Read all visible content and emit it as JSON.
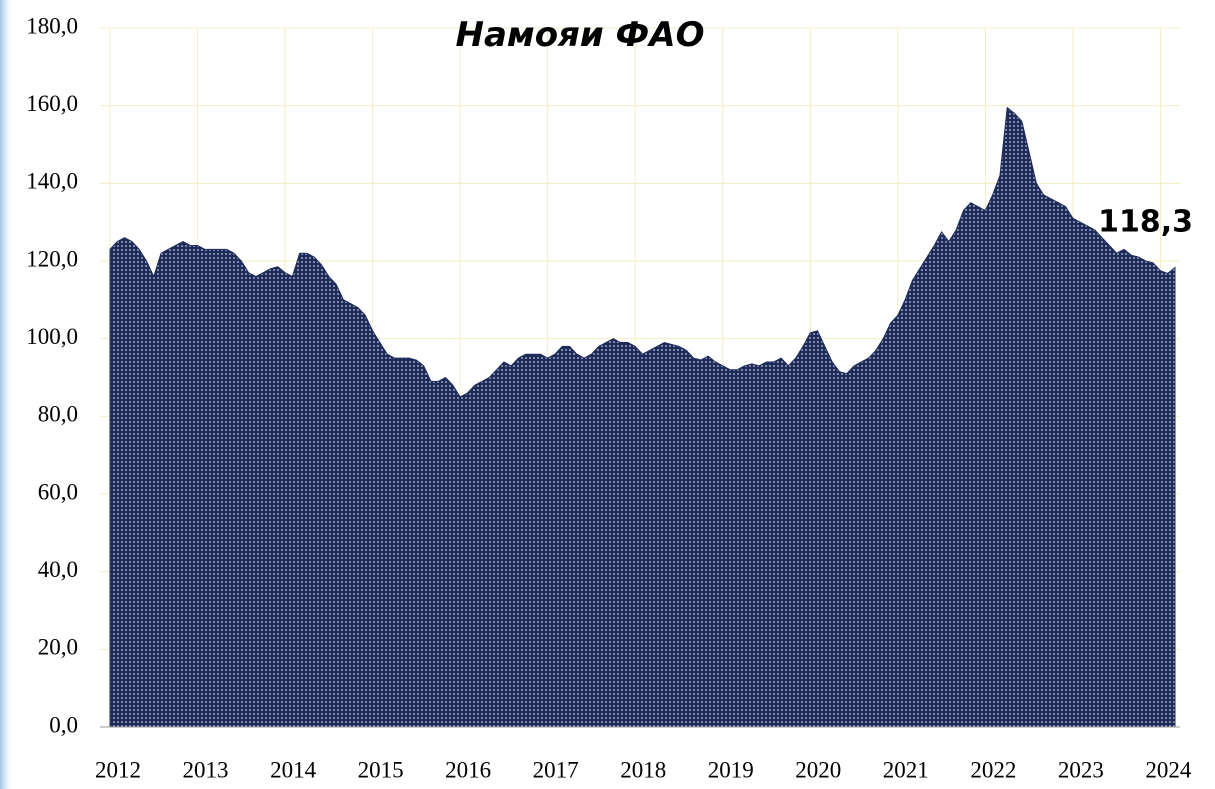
{
  "chart_data": {
    "type": "area",
    "title": "Намояи ФАО",
    "categories": [
      "2012",
      null,
      null,
      null,
      null,
      null,
      null,
      null,
      null,
      null,
      null,
      null,
      "2013",
      null,
      null,
      null,
      null,
      null,
      null,
      null,
      null,
      null,
      null,
      null,
      "2014",
      null,
      null,
      null,
      null,
      null,
      null,
      null,
      null,
      null,
      null,
      null,
      "2015",
      null,
      null,
      null,
      null,
      null,
      null,
      null,
      null,
      null,
      null,
      null,
      "2016",
      null,
      null,
      null,
      null,
      null,
      null,
      null,
      null,
      null,
      null,
      null,
      "2017",
      null,
      null,
      null,
      null,
      null,
      null,
      null,
      null,
      null,
      null,
      null,
      "2018",
      null,
      null,
      null,
      null,
      null,
      null,
      null,
      null,
      null,
      null,
      null,
      "2019",
      null,
      null,
      null,
      null,
      null,
      null,
      null,
      null,
      null,
      null,
      null,
      "2020",
      null,
      null,
      null,
      null,
      null,
      null,
      null,
      null,
      null,
      null,
      null,
      "2021",
      null,
      null,
      null,
      null,
      null,
      null,
      null,
      null,
      null,
      null,
      null,
      "2022",
      null,
      null,
      null,
      null,
      null,
      null,
      null,
      null,
      null,
      null,
      null,
      "2023",
      null,
      null,
      null,
      null,
      null,
      null,
      null,
      null,
      null,
      null,
      null,
      "2024",
      null,
      null
    ],
    "values": [
      123,
      125,
      126,
      125,
      123,
      120,
      116,
      122,
      123,
      124,
      125,
      124,
      124,
      123,
      123,
      123,
      123,
      122,
      120,
      117,
      116,
      117,
      118,
      118.5,
      117,
      116,
      122,
      122,
      121,
      119,
      116,
      114,
      110,
      109,
      108,
      106,
      102,
      99,
      96,
      95,
      95,
      95,
      94.5,
      93,
      89,
      89,
      90,
      88,
      85,
      86,
      88,
      89,
      90,
      92,
      94,
      93,
      95,
      96,
      96,
      96,
      95,
      96,
      98,
      98,
      96,
      95,
      96,
      98,
      99,
      100,
      99,
      99,
      98,
      96,
      97,
      98,
      99,
      98.5,
      98,
      97,
      95,
      94.5,
      95.5,
      94,
      93,
      92,
      92,
      93,
      93.5,
      93,
      94,
      94,
      95,
      93,
      95,
      98,
      101.5,
      102,
      98,
      94,
      91.5,
      91,
      93,
      94,
      95,
      97,
      100,
      104,
      106,
      110,
      115,
      118,
      121,
      124,
      127.5,
      125,
      128,
      133,
      135,
      134,
      133,
      137,
      142,
      159.5,
      158,
      156,
      148,
      140,
      137,
      136,
      135,
      134,
      131,
      130,
      129,
      128,
      126,
      124,
      122,
      123,
      121.5,
      121,
      120,
      119.5,
      117.5,
      116.8,
      118.3
    ],
    "value_labels": [
      null,
      null,
      null,
      null,
      null,
      null,
      null,
      null,
      null,
      null,
      null,
      null,
      null,
      null,
      null,
      null,
      null,
      null,
      null,
      null,
      null,
      null,
      null,
      null,
      null,
      null,
      null,
      null,
      null,
      null,
      null,
      null,
      null,
      null,
      null,
      null,
      null,
      null,
      null,
      null,
      null,
      null,
      null,
      null,
      null,
      null,
      null,
      null,
      null,
      null,
      null,
      null,
      null,
      null,
      null,
      null,
      null,
      null,
      null,
      null,
      null,
      null,
      null,
      null,
      null,
      null,
      null,
      null,
      null,
      null,
      null,
      null,
      null,
      null,
      null,
      null,
      null,
      null,
      null,
      null,
      null,
      null,
      null,
      null,
      null,
      null,
      null,
      null,
      null,
      null,
      null,
      null,
      null,
      null,
      null,
      null,
      null,
      null,
      null,
      null,
      null,
      null,
      null,
      null,
      null,
      null,
      null,
      null,
      null,
      null,
      null,
      null,
      null,
      null,
      null,
      null,
      null,
      null,
      null,
      null,
      null,
      null,
      null,
      null,
      null,
      null,
      null,
      null,
      null,
      null,
      null,
      null,
      null,
      null,
      null,
      null,
      null,
      null,
      null,
      null,
      null,
      null,
      null,
      null,
      null,
      null,
      "118,3"
    ],
    "color": "#1c2b5a",
    "ylim": [
      0,
      180
    ],
    "yticks": [
      {
        "value": 0,
        "label": "0,0"
      },
      {
        "value": 20,
        "label": "20,0"
      },
      {
        "value": 40,
        "label": "40,0"
      },
      {
        "value": 60,
        "label": "60,0"
      },
      {
        "value": 80,
        "label": "80,0"
      },
      {
        "value": 100,
        "label": "100,0"
      },
      {
        "value": 120,
        "label": "120,0"
      },
      {
        "value": 140,
        "label": "140,0"
      },
      {
        "value": 160,
        "label": "160,0"
      },
      {
        "value": 180,
        "label": "180,0"
      }
    ],
    "grid": true
  }
}
